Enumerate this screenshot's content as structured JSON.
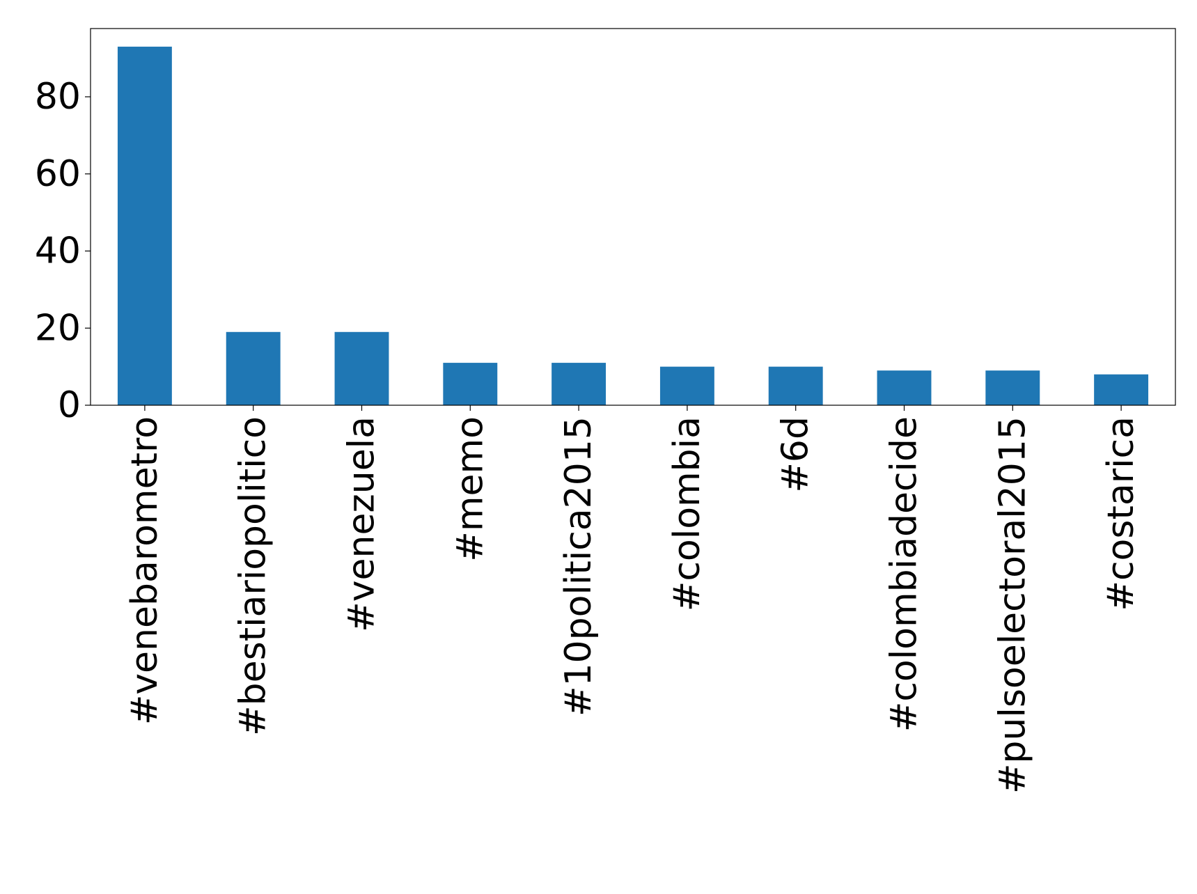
{
  "chart_data": {
    "type": "bar",
    "categories": [
      "#venebarometro",
      "#bestiariopolitico",
      "#venezuela",
      "#memo",
      "#10politica2015",
      "#colombia",
      "#6d",
      "#colombiadecide",
      "#pulsoelectoral2015",
      "#costarica"
    ],
    "values": [
      93,
      19,
      19,
      11,
      11,
      10,
      10,
      9,
      9,
      8
    ],
    "color": "#1f77b4",
    "ylim": [
      0,
      97.7
    ],
    "yticks": [
      0,
      20,
      40,
      60,
      80
    ],
    "grid": false
  }
}
